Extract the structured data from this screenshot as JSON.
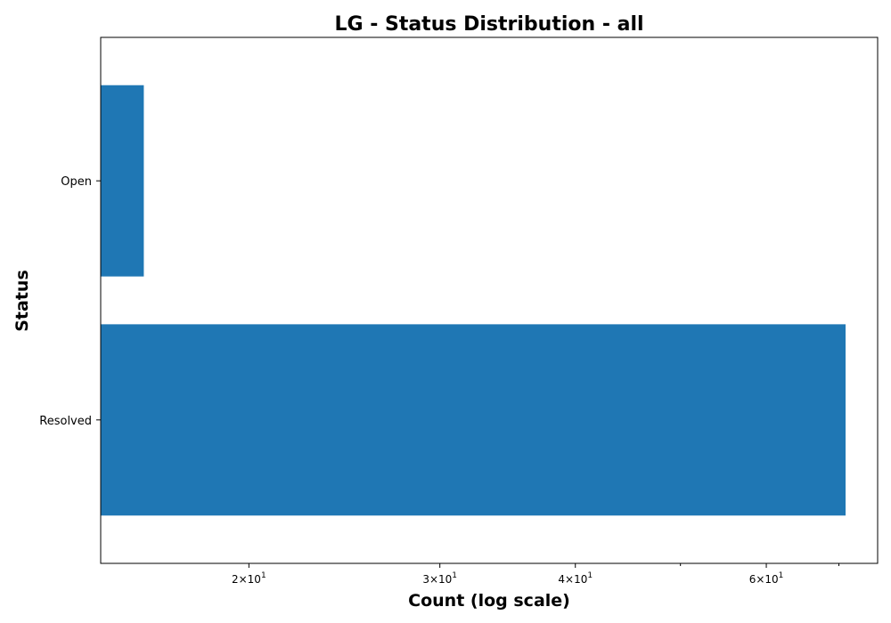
{
  "chart_data": {
    "type": "bar",
    "orientation": "horizontal",
    "title": "LG - Status Distribution - all",
    "xlabel": "Count (log scale)",
    "ylabel": "Status",
    "x_scale": "log",
    "xlim": [
      14.6,
      76
    ],
    "categories": [
      "Open",
      "Resolved"
    ],
    "values": [
      16,
      71
    ],
    "color": "#1f77b4",
    "grid": false,
    "x_major_ticks": [
      {
        "value": 20,
        "mantissa": "2",
        "base": "10",
        "exponent": "1"
      },
      {
        "value": 30,
        "mantissa": "3",
        "base": "10",
        "exponent": "1"
      },
      {
        "value": 40,
        "mantissa": "4",
        "base": "10",
        "exponent": "1"
      },
      {
        "value": 60,
        "mantissa": "6",
        "base": "10",
        "exponent": "1"
      }
    ],
    "x_minor_ticks": [
      50,
      70
    ]
  }
}
